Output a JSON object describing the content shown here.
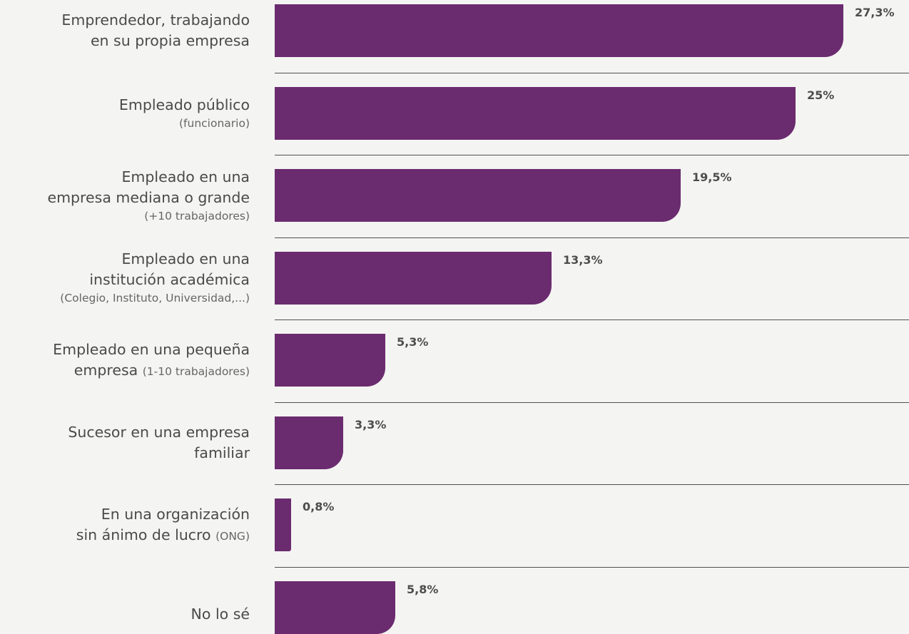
{
  "chart_data": {
    "type": "bar",
    "orientation": "horizontal",
    "colors": {
      "bar": "#6b2b6f",
      "background": "#f4f4f2",
      "text": "#4a4a4a",
      "divider": "#505050"
    },
    "categories": [
      {
        "lines": [
          "Emprendedor, trabajando",
          "en su propia empresa"
        ],
        "value": 27.3,
        "value_label": "27,3%"
      },
      {
        "lines": [
          "Empleado público"
        ],
        "note": "(funcionario)",
        "note_block": true,
        "value": 25,
        "value_label": "25%"
      },
      {
        "lines": [
          "Empleado en una",
          "empresa mediana o grande"
        ],
        "note": "(+10 trabajadores)",
        "note_block": true,
        "value": 19.5,
        "value_label": "19,5%"
      },
      {
        "lines": [
          "Empleado en una",
          "institución académica"
        ],
        "note": "(Colegio, Instituto, Universidad,...)",
        "note_block": true,
        "value": 13.3,
        "value_label": "13,3%"
      },
      {
        "lines": [
          "Empleado en una pequeña",
          "empresa"
        ],
        "note": "(1-10 trabajadores)",
        "note_block": false,
        "value": 5.3,
        "value_label": "5,3%"
      },
      {
        "lines": [
          "Sucesor en una empresa",
          "familiar"
        ],
        "value": 3.3,
        "value_label": "3,3%"
      },
      {
        "lines": [
          "En una organización",
          "sin ánimo de lucro"
        ],
        "note": "(ONG)",
        "note_block": false,
        "value": 0.8,
        "value_label": "0,8%"
      },
      {
        "lines": [
          "No lo sé"
        ],
        "value": 5.8,
        "value_label": "5,8%"
      }
    ]
  }
}
